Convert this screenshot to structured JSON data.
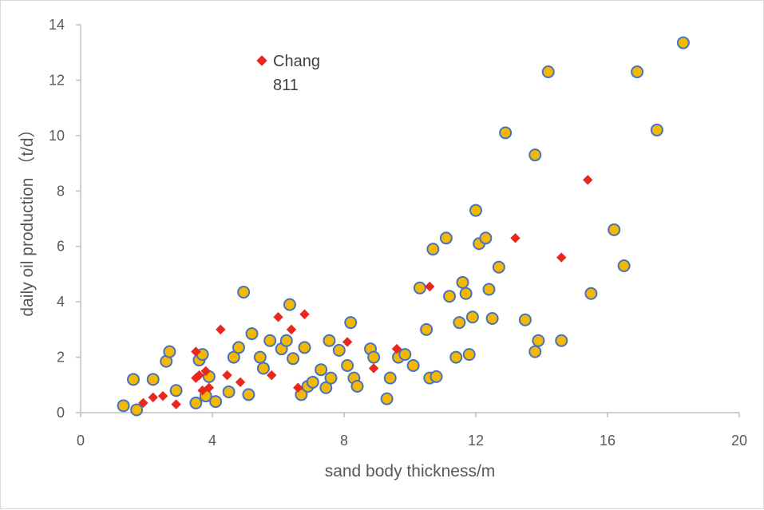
{
  "chart_data": {
    "type": "scatter",
    "xlabel": "sand body thickness/m",
    "ylabel": "daily  oil production （t/d）",
    "xlim": [
      0,
      20
    ],
    "ylim": [
      0,
      14
    ],
    "xticks": [
      0,
      4,
      8,
      12,
      16,
      20
    ],
    "yticks": [
      0,
      2,
      4,
      6,
      8,
      10,
      12,
      14
    ],
    "grid": false,
    "legend_position": "top-left",
    "series": [
      {
        "name": "Chang 811",
        "marker": "diamond",
        "color": "#e8281f",
        "edge_color": "#e8281f",
        "points": [
          [
            1.9,
            0.35
          ],
          [
            2.2,
            0.55
          ],
          [
            2.5,
            0.6
          ],
          [
            2.9,
            0.3
          ],
          [
            3.5,
            2.2
          ],
          [
            3.5,
            1.25
          ],
          [
            3.6,
            1.35
          ],
          [
            3.7,
            0.8
          ],
          [
            3.8,
            1.5
          ],
          [
            3.9,
            0.9
          ],
          [
            4.25,
            3.0
          ],
          [
            4.45,
            1.35
          ],
          [
            4.85,
            1.1
          ],
          [
            5.8,
            1.35
          ],
          [
            6.0,
            3.45
          ],
          [
            6.4,
            3.0
          ],
          [
            6.6,
            0.9
          ],
          [
            6.8,
            3.55
          ],
          [
            8.1,
            2.55
          ],
          [
            8.9,
            1.6
          ],
          [
            9.6,
            2.3
          ],
          [
            10.6,
            4.55
          ],
          [
            13.2,
            6.3
          ],
          [
            14.6,
            5.6
          ],
          [
            15.4,
            8.4
          ]
        ]
      },
      {
        "name": "",
        "marker": "circle",
        "color": "#f5b800",
        "edge_color": "#4472c4",
        "points": [
          [
            1.3,
            0.25
          ],
          [
            1.6,
            1.2
          ],
          [
            1.7,
            0.1
          ],
          [
            2.2,
            1.2
          ],
          [
            2.6,
            1.85
          ],
          [
            2.7,
            2.2
          ],
          [
            2.9,
            0.8
          ],
          [
            3.5,
            0.35
          ],
          [
            3.6,
            1.9
          ],
          [
            3.7,
            2.1
          ],
          [
            3.8,
            0.6
          ],
          [
            3.9,
            1.3
          ],
          [
            4.1,
            0.4
          ],
          [
            4.5,
            0.75
          ],
          [
            4.65,
            2.0
          ],
          [
            4.8,
            2.35
          ],
          [
            4.95,
            4.35
          ],
          [
            5.1,
            0.65
          ],
          [
            5.2,
            2.85
          ],
          [
            5.45,
            2.0
          ],
          [
            5.55,
            1.6
          ],
          [
            5.75,
            2.6
          ],
          [
            6.1,
            2.3
          ],
          [
            6.25,
            2.6
          ],
          [
            6.35,
            3.9
          ],
          [
            6.45,
            1.95
          ],
          [
            6.7,
            0.65
          ],
          [
            6.8,
            2.35
          ],
          [
            6.9,
            0.95
          ],
          [
            7.05,
            1.1
          ],
          [
            7.3,
            1.55
          ],
          [
            7.45,
            0.9
          ],
          [
            7.55,
            2.6
          ],
          [
            7.6,
            1.25
          ],
          [
            7.85,
            2.25
          ],
          [
            8.1,
            1.7
          ],
          [
            8.2,
            3.25
          ],
          [
            8.3,
            1.25
          ],
          [
            8.4,
            0.95
          ],
          [
            8.8,
            2.3
          ],
          [
            8.9,
            2.0
          ],
          [
            9.3,
            0.5
          ],
          [
            9.4,
            1.25
          ],
          [
            9.65,
            2.0
          ],
          [
            9.85,
            2.1
          ],
          [
            10.1,
            1.7
          ],
          [
            10.3,
            4.5
          ],
          [
            10.5,
            3.0
          ],
          [
            10.6,
            1.25
          ],
          [
            10.7,
            5.9
          ],
          [
            10.8,
            1.3
          ],
          [
            11.1,
            6.3
          ],
          [
            11.2,
            4.2
          ],
          [
            11.4,
            2.0
          ],
          [
            11.5,
            3.25
          ],
          [
            11.6,
            4.7
          ],
          [
            11.7,
            4.3
          ],
          [
            11.8,
            2.1
          ],
          [
            11.9,
            3.45
          ],
          [
            12.0,
            7.3
          ],
          [
            12.1,
            6.1
          ],
          [
            12.3,
            6.3
          ],
          [
            12.4,
            4.45
          ],
          [
            12.5,
            3.4
          ],
          [
            12.7,
            5.25
          ],
          [
            12.9,
            10.1
          ],
          [
            13.5,
            3.35
          ],
          [
            13.8,
            9.3
          ],
          [
            13.8,
            2.2
          ],
          [
            13.9,
            2.6
          ],
          [
            14.2,
            12.3
          ],
          [
            14.6,
            2.6
          ],
          [
            15.5,
            4.3
          ],
          [
            16.2,
            6.6
          ],
          [
            16.5,
            5.3
          ],
          [
            16.9,
            12.3
          ],
          [
            17.5,
            10.2
          ],
          [
            18.3,
            13.35
          ]
        ]
      }
    ]
  }
}
